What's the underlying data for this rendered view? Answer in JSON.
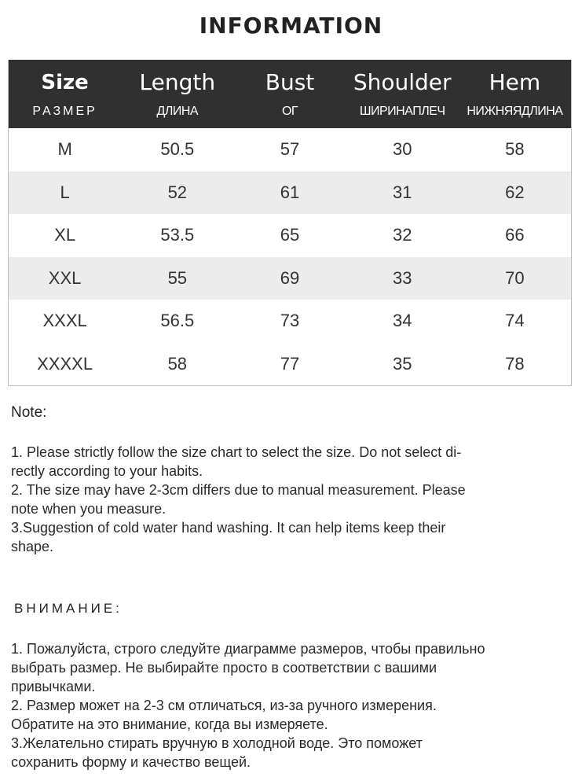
{
  "title": "INFORMATION",
  "table": {
    "columns": [
      {
        "en": "Size",
        "ru": "РАЗМЕР"
      },
      {
        "en": "Length",
        "ru": "ДЛИНА"
      },
      {
        "en": "Bust",
        "ru": "ОГ"
      },
      {
        "en": "Shoulder",
        "ru": "ШИРИНАПЛЕЧ"
      },
      {
        "en": "Hem",
        "ru": "НИЖНЯЯДЛИНА"
      }
    ],
    "rows": [
      [
        "M",
        "50.5",
        "57",
        "30",
        "58"
      ],
      [
        "L",
        "52",
        "61",
        "31",
        "62"
      ],
      [
        "XL",
        "53.5",
        "65",
        "32",
        "66"
      ],
      [
        "XXL",
        "55",
        "69",
        "33",
        "70"
      ],
      [
        "XXXL",
        "56.5",
        "73",
        "34",
        "74"
      ],
      [
        "XXXXL",
        "58",
        "77",
        "35",
        "78"
      ]
    ]
  },
  "note": {
    "heading": "Note:",
    "items": [
      "1. Please strictly follow the size chart  to select the size. Do not select di-",
      "rectly according to your habits.",
      "2. The size may have 2-3cm differs due to manual measurement. Please",
      "note when you measure.",
      "3.Suggestion of cold water hand washing. It can help items keep their",
      "shape."
    ]
  },
  "attention": {
    "heading": "ВНИМАНИЕ:",
    "items": [
      "1. Пожалуйста, строго следуйте диаграмме размеров, чтобы правильно",
      "выбрать размер. Не выбирайте просто в соответствии с вашими",
      "привычками.",
      "2. Размер может на 2-3 см отличаться, из-за ручного измерения.",
      "Обратите на это внимание, когда вы измеряете.",
      "3.Желательно стирать вручную в холодной воде. Это поможет",
      "сохранить форму и качество вещей."
    ]
  }
}
